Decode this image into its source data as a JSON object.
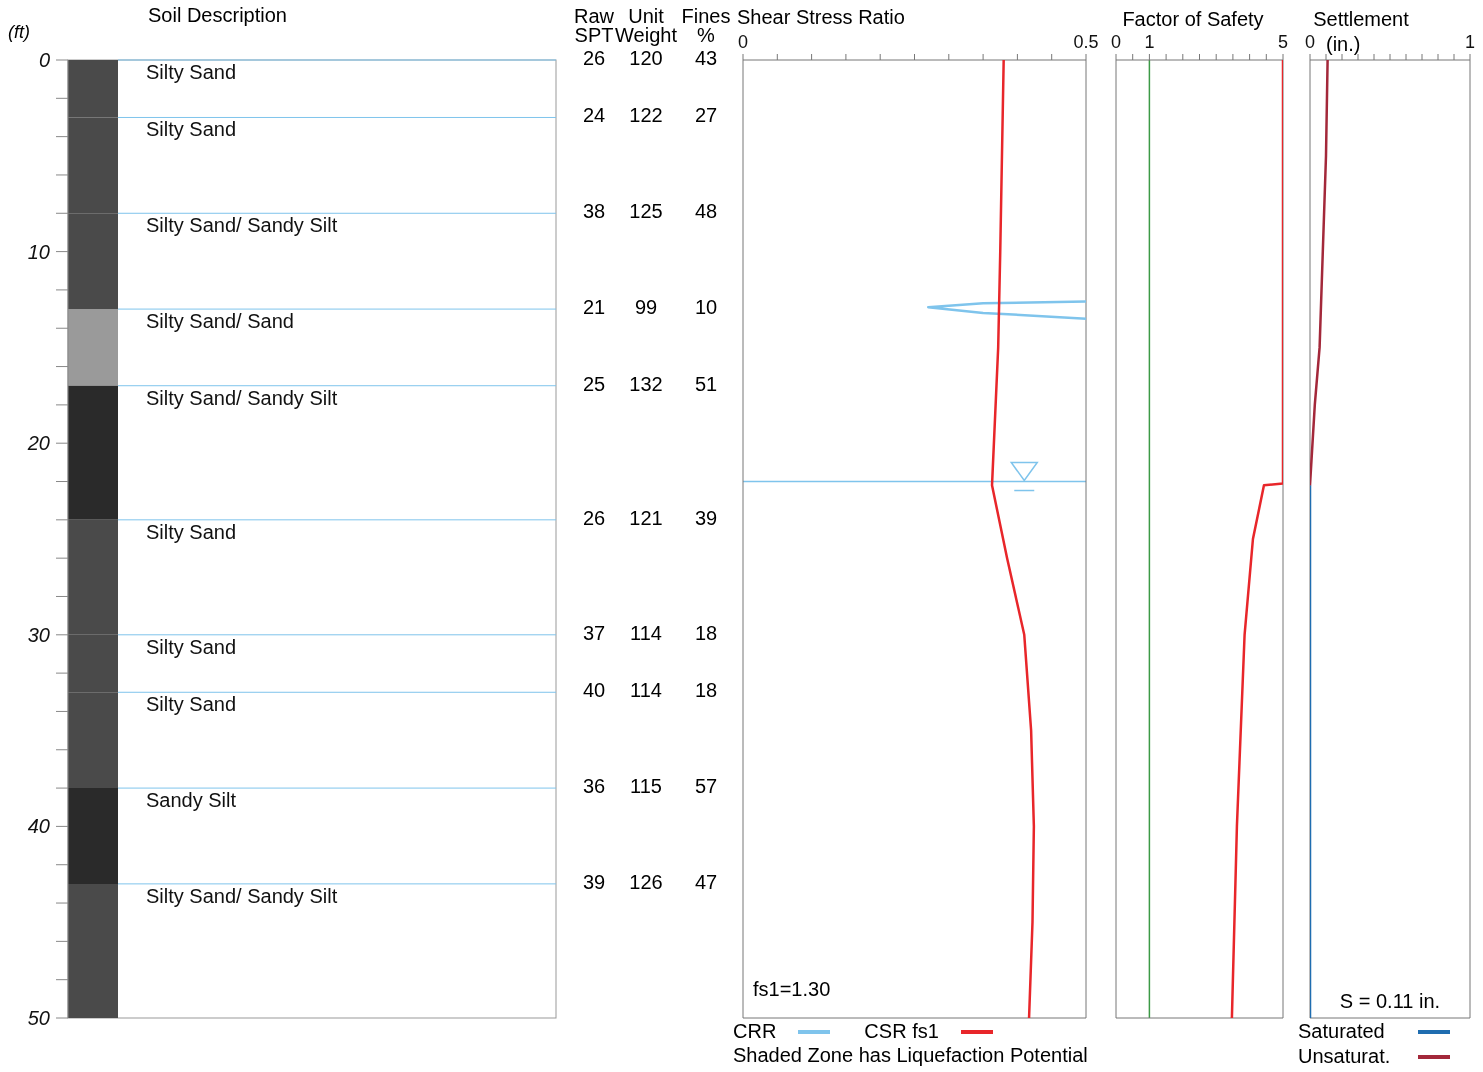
{
  "chart_data": [
    {
      "type": "bar",
      "stacked": true,
      "ylabel": "(ft)",
      "annotations": [
        "Soil Description"
      ],
      "categories": [
        null
      ],
      "ylim": [
        50,
        0
      ],
      "yticks": [
        0,
        {
          "value": 2,
          "label": null
        },
        {
          "value": 4,
          "label": null
        },
        {
          "value": 6,
          "label": null
        },
        {
          "value": 8,
          "label": null
        },
        10,
        {
          "value": 12,
          "label": null
        },
        {
          "value": 14,
          "label": null
        },
        {
          "value": 16,
          "label": null
        },
        {
          "value": 18,
          "label": null
        },
        20,
        {
          "value": 22,
          "label": null
        },
        {
          "value": 24,
          "label": null
        },
        {
          "value": 26,
          "label": null
        },
        {
          "value": 28,
          "label": null
        },
        30,
        {
          "value": 32,
          "label": null
        },
        {
          "value": 34,
          "label": null
        },
        {
          "value": 36,
          "label": null
        },
        {
          "value": 38,
          "label": null
        },
        40,
        {
          "value": 42,
          "label": null
        },
        {
          "value": 44,
          "label": null
        },
        {
          "value": 46,
          "label": null
        },
        {
          "value": 48,
          "label": null
        },
        50
      ],
      "series": [
        {
          "name": "Silty Sand",
          "color": "#4a4a4a",
          "values": [
            3
          ]
        },
        {
          "name": "Silty Sand",
          "color": "#4a4a4a",
          "values": [
            5
          ]
        },
        {
          "name": "Silty Sand/ Sandy Silt",
          "color": "#4a4a4a",
          "values": [
            5
          ]
        },
        {
          "name": "Silty Sand/ Sand",
          "color": "#9a9a9a",
          "values": [
            4
          ]
        },
        {
          "name": "Silty Sand/ Sandy Silt",
          "color": "#2a2a2a",
          "values": [
            7
          ]
        },
        {
          "name": "Silty Sand",
          "color": "#4a4a4a",
          "values": [
            6
          ]
        },
        {
          "name": "Silty Sand",
          "color": "#4a4a4a",
          "values": [
            3
          ]
        },
        {
          "name": "Silty Sand",
          "color": "#4a4a4a",
          "values": [
            5
          ]
        },
        {
          "name": "Sandy Silt",
          "color": "#2a2a2a",
          "values": [
            5
          ]
        },
        {
          "name": "Silty Sand/ Sandy Silt",
          "color": "#4a4a4a",
          "values": [
            7
          ]
        }
      ]
    },
    {
      "type": "other",
      "categories": [
        "Raw SPT",
        "Unit Weight",
        "Fines %"
      ],
      "annotations": [
        "26",
        "120",
        "43",
        "24",
        "122",
        "27",
        "38",
        "125",
        "48",
        "21",
        "99",
        "10",
        "25",
        "132",
        "51",
        "26",
        "121",
        "39",
        "37",
        "114",
        "18",
        "40",
        "114",
        "18",
        "36",
        "115",
        "57",
        "39",
        "126",
        "47"
      ]
    },
    {
      "type": "line",
      "title": "Shear Stress Ratio",
      "xlim": [
        0,
        0.5
      ],
      "ylim": [
        50,
        0
      ],
      "tick_labels": "x",
      "xticks": [
        0,
        {
          "value": 0.05,
          "label": null
        },
        {
          "value": 0.1,
          "label": null
        },
        {
          "value": 0.15,
          "label": null
        },
        {
          "value": 0.2,
          "label": null
        },
        {
          "value": 0.25,
          "label": null
        },
        {
          "value": 0.3,
          "label": null
        },
        {
          "value": 0.35,
          "label": null
        },
        {
          "value": 0.4,
          "label": null
        },
        {
          "value": 0.45,
          "label": null
        },
        0.5
      ],
      "series": [
        {
          "name": "CRR",
          "color": "#7fc4ec",
          "x": [
            0.5,
            0.35,
            0.27,
            0.35,
            0.5
          ],
          "values": [
            12.6,
            12.7,
            12.9,
            13.2,
            13.5
          ]
        },
        {
          "name": "CSR fs1",
          "color": "#e8262a",
          "x": [
            0.38,
            0.375,
            0.372,
            0.363,
            0.385,
            0.41,
            0.42,
            0.424,
            0.422,
            0.417
          ],
          "values": [
            0,
            10,
            15,
            22.2,
            26,
            30,
            35,
            40,
            45,
            50
          ]
        }
      ],
      "ref_lines": [
        {
          "axis": "y",
          "value": 22,
          "color": "#7fc4ec"
        }
      ],
      "legend": "bottom",
      "annotations": [
        "fs1=1.30",
        "Shaded Zone has Liquefaction Potential"
      ]
    },
    {
      "type": "line",
      "title": "Factor of Safety",
      "xlim": [
        0,
        5
      ],
      "ylim": [
        50,
        0
      ],
      "tick_labels": "x",
      "xticks": [
        0,
        {
          "value": 0.5,
          "label": null
        },
        1,
        {
          "value": 1.5,
          "label": null
        },
        {
          "value": 2,
          "label": null
        },
        {
          "value": 2.5,
          "label": null
        },
        {
          "value": 3,
          "label": null
        },
        {
          "value": 3.5,
          "label": null
        },
        {
          "value": 4,
          "label": null
        },
        {
          "value": 4.5,
          "label": null
        },
        5
      ],
      "series": [
        {
          "color": "#e8262a",
          "x": [
            5,
            5,
            4.43,
            4.1,
            3.85,
            3.62,
            3.47
          ],
          "values": [
            0,
            22.1,
            22.2,
            25,
            30,
            40,
            50
          ]
        }
      ],
      "ref_lines": [
        {
          "axis": "x",
          "value": 1,
          "color": "#3c9a46"
        }
      ]
    },
    {
      "type": "line",
      "title": "Settlement",
      "xlabel": "(in.)",
      "xlim": [
        0,
        1
      ],
      "ylim": [
        50,
        0
      ],
      "tick_labels": "x",
      "xticks": [
        0,
        {
          "value": 0.1,
          "label": null
        },
        {
          "value": 0.2,
          "label": null
        },
        {
          "value": 0.3,
          "label": null
        },
        {
          "value": 0.4,
          "label": null
        },
        {
          "value": 0.5,
          "label": null
        },
        {
          "value": 0.6,
          "label": null
        },
        {
          "value": 0.7,
          "label": null
        },
        {
          "value": 0.8,
          "label": null
        },
        {
          "value": 0.9,
          "label": null
        },
        1
      ],
      "series": [
        {
          "name": "Saturated",
          "color": "#1f6db0",
          "x": [
            0,
            0
          ],
          "values": [
            22.2,
            50
          ]
        },
        {
          "name": "Unsaturat.",
          "color": "#a3283a",
          "x": [
            0.11,
            0.1,
            0.08,
            0.06,
            0.03,
            0
          ],
          "values": [
            0,
            5,
            10,
            15,
            18,
            22.2
          ]
        }
      ],
      "legend": "bottom",
      "annotations": [
        "S = 0.11 in."
      ]
    }
  ]
}
